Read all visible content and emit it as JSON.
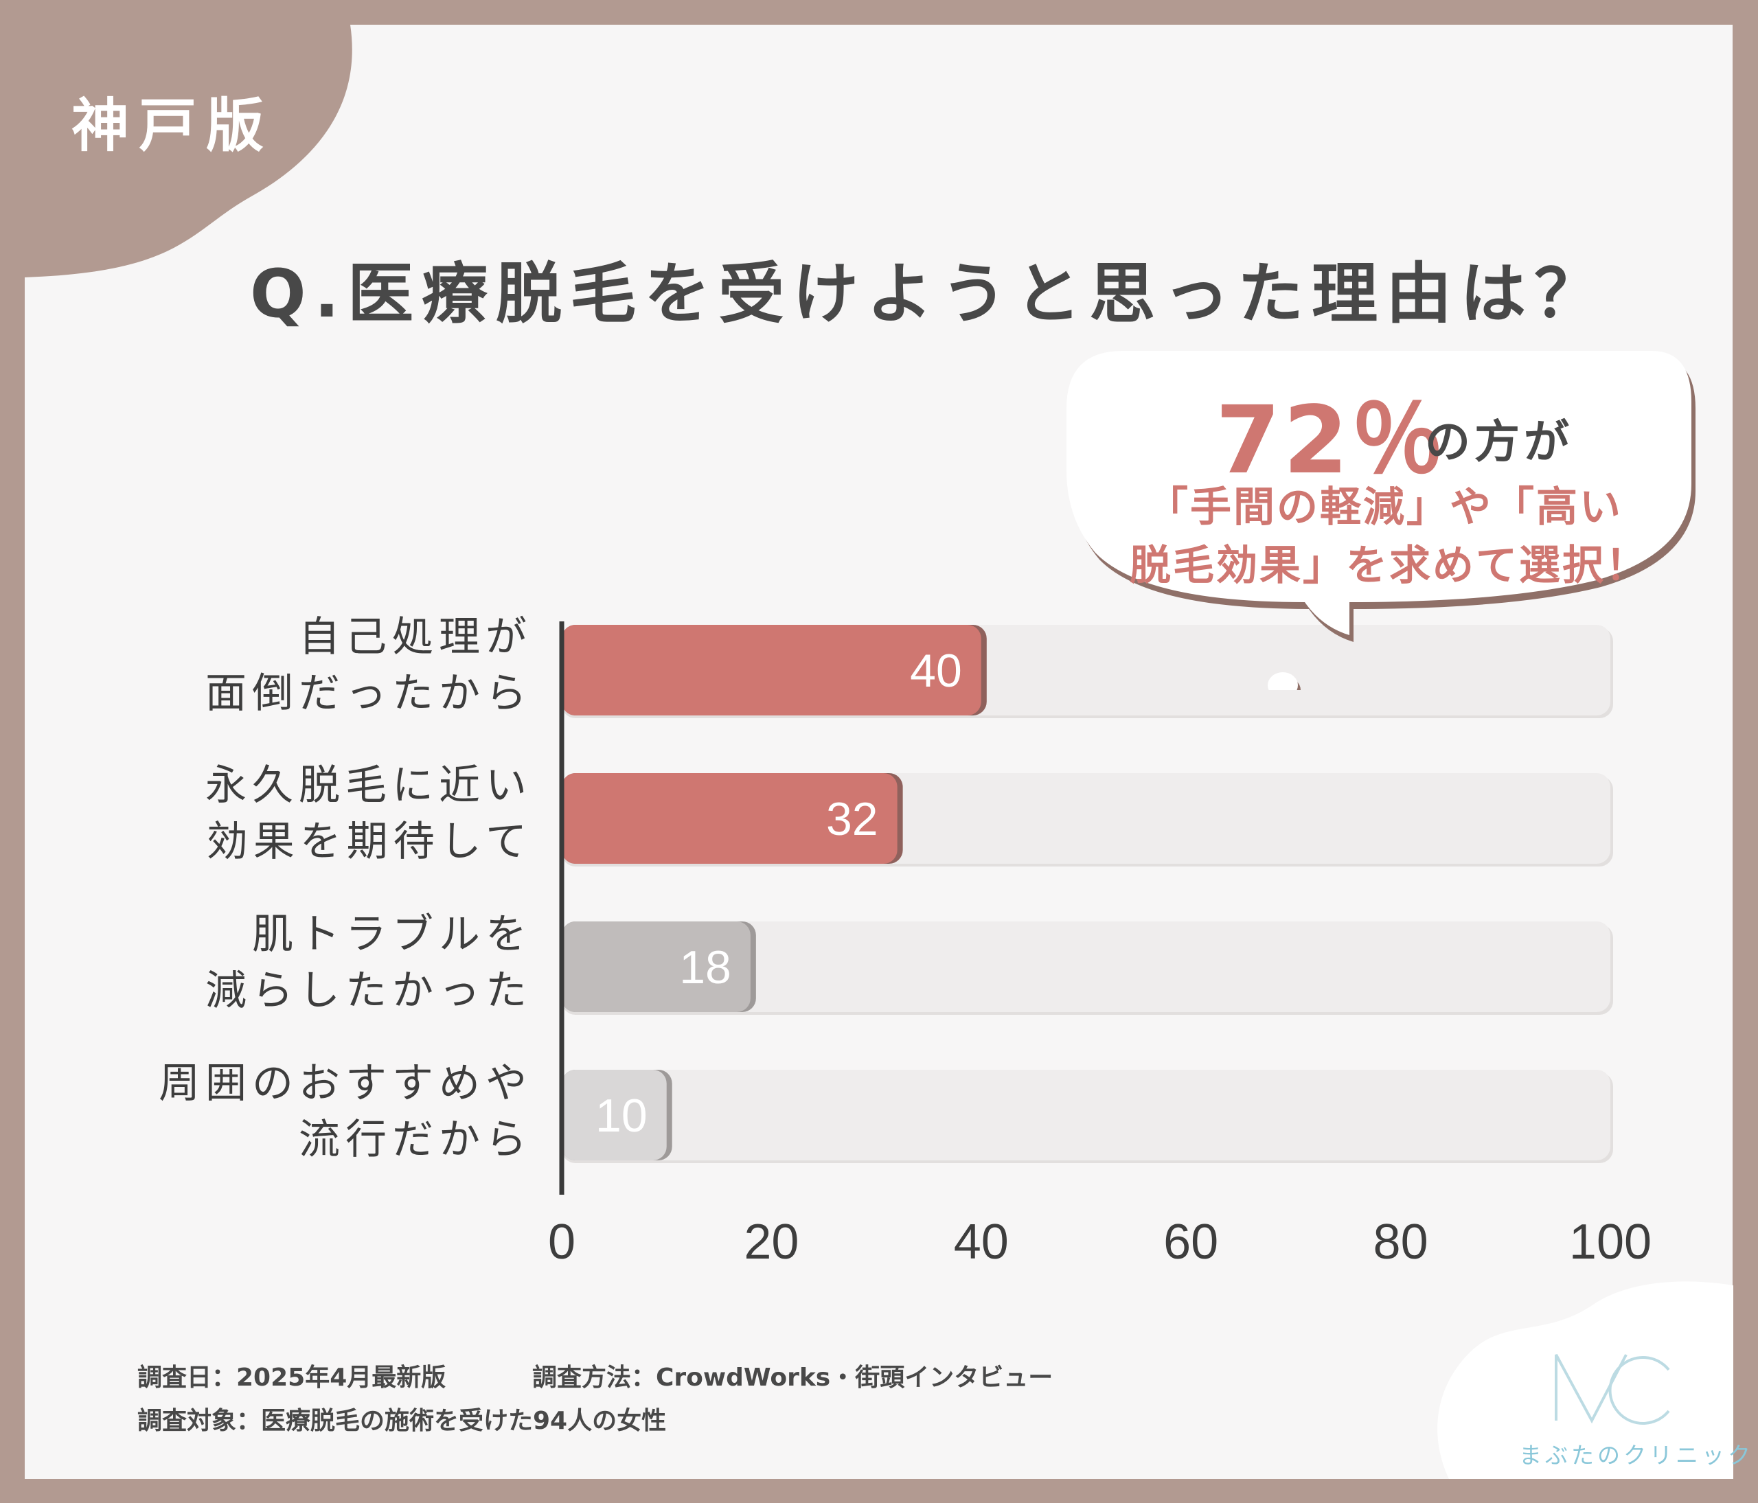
{
  "region_badge": "神戸版",
  "colors": {
    "frame": "#b29a91",
    "accent_red": "#cf7771",
    "bar_gray": "#c0bcbb",
    "bar_light": "#d9d7d7",
    "track": "#efeded",
    "text_dark": "#484848",
    "logo_teal": "#8ac7d9"
  },
  "callout": {
    "percent": "72％",
    "suffix": "の方が",
    "line1": "「手間の軽減」や「高い",
    "line2": "脱毛効果」を求めて選択！"
  },
  "footer": {
    "date": "調査日：2025年4月最新版",
    "method": "調査方法：CrowdWorks・街頭インタビュー",
    "target": "調査対象：医療脱毛の施術を受けた94人の女性"
  },
  "logo": {
    "mark": "MC",
    "name": "まぶたのクリニック"
  },
  "chart_data": {
    "type": "bar",
    "orientation": "horizontal",
    "title": "Q.医療脱毛を受けようと思った理由は？",
    "categories": [
      [
        "自己処理が",
        "面倒だったから"
      ],
      [
        "永久脱毛に近い",
        "効果を期待して"
      ],
      [
        "肌トラブルを",
        "減らしたかった"
      ],
      [
        "周囲のおすすめや",
        "流行だから"
      ]
    ],
    "values": [
      40,
      32,
      18,
      10
    ],
    "bar_colors": [
      "#cf7771",
      "#cf7771",
      "#c0bcbb",
      "#d9d7d7"
    ],
    "xlim": [
      0,
      100
    ],
    "xticks": [
      0,
      20,
      40,
      60,
      80,
      100
    ],
    "grid": false,
    "legend": "none"
  }
}
